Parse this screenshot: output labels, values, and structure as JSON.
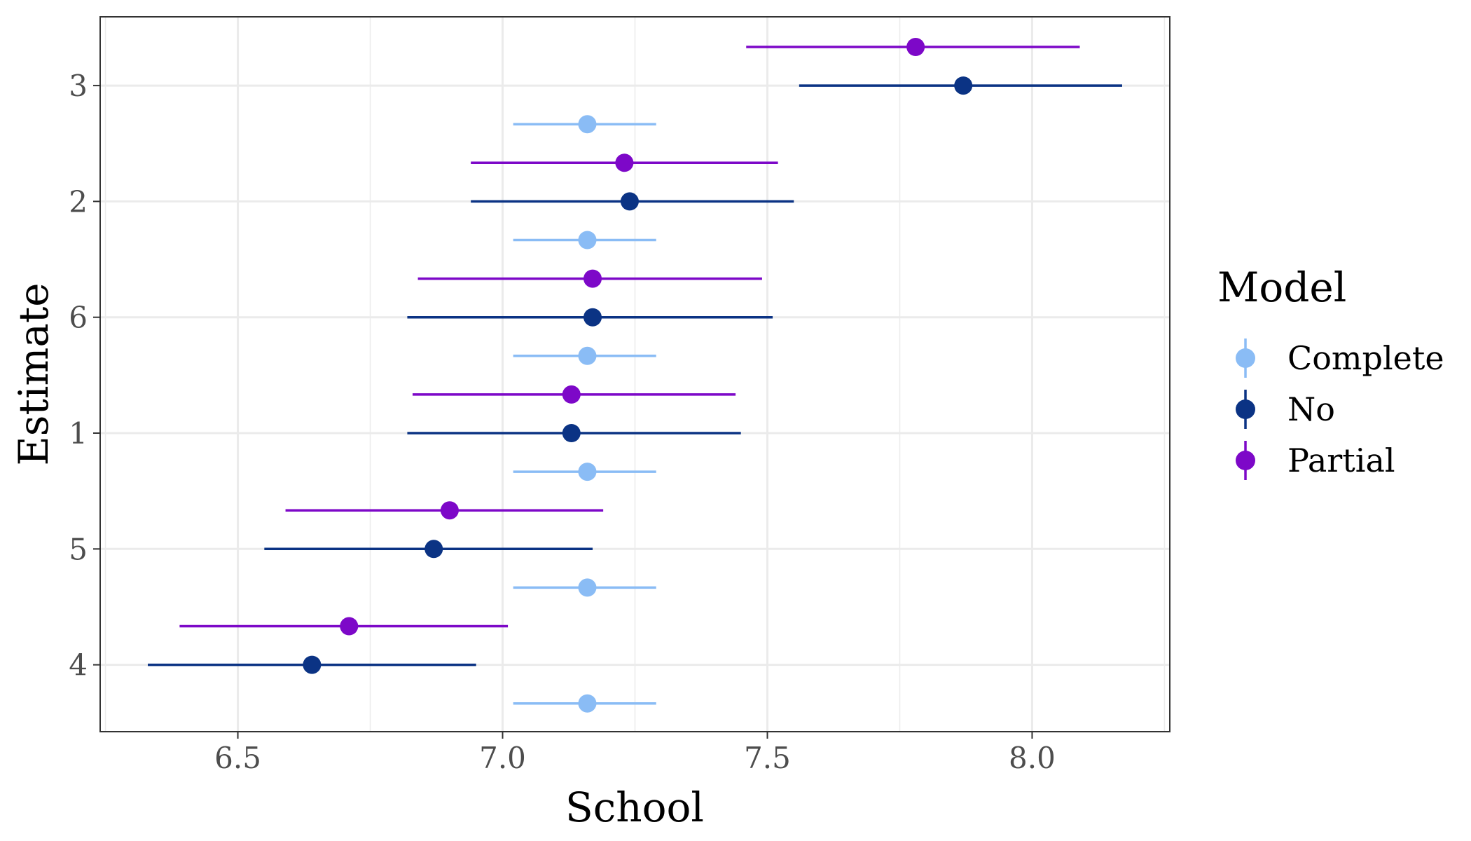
{
  "chart_data": {
    "type": "scatter",
    "subtype": "point-range",
    "xlabel": "School",
    "ylabel": "Estimate",
    "xlim": [
      6.24,
      8.26
    ],
    "xticks": [
      6.5,
      7.0,
      7.5,
      8.0
    ],
    "xtick_labels": [
      "6.5",
      "7.0",
      "7.5",
      "8.0"
    ],
    "categories": [
      "4",
      "5",
      "1",
      "6",
      "2",
      "3"
    ],
    "grid": true,
    "legend": {
      "title": "Model",
      "position": "right",
      "entries": [
        "Complete",
        "No",
        "Partial"
      ]
    },
    "series": [
      {
        "name": "Complete",
        "color": "#8ABCF5",
        "points": [
          {
            "category": "4",
            "estimate": 7.16,
            "lower": 7.02,
            "upper": 7.29
          },
          {
            "category": "5",
            "estimate": 7.16,
            "lower": 7.02,
            "upper": 7.29
          },
          {
            "category": "1",
            "estimate": 7.16,
            "lower": 7.02,
            "upper": 7.29
          },
          {
            "category": "6",
            "estimate": 7.16,
            "lower": 7.02,
            "upper": 7.29
          },
          {
            "category": "2",
            "estimate": 7.16,
            "lower": 7.02,
            "upper": 7.29
          },
          {
            "category": "3",
            "estimate": 7.16,
            "lower": 7.02,
            "upper": 7.29
          }
        ]
      },
      {
        "name": "No",
        "color": "#0B3384",
        "points": [
          {
            "category": "4",
            "estimate": 6.64,
            "lower": 6.33,
            "upper": 6.95
          },
          {
            "category": "5",
            "estimate": 6.87,
            "lower": 6.55,
            "upper": 7.17
          },
          {
            "category": "1",
            "estimate": 7.13,
            "lower": 6.82,
            "upper": 7.45
          },
          {
            "category": "6",
            "estimate": 7.17,
            "lower": 6.82,
            "upper": 7.51
          },
          {
            "category": "2",
            "estimate": 7.24,
            "lower": 6.94,
            "upper": 7.55
          },
          {
            "category": "3",
            "estimate": 7.87,
            "lower": 7.56,
            "upper": 8.17
          }
        ]
      },
      {
        "name": "Partial",
        "color": "#7D08C8",
        "points": [
          {
            "category": "4",
            "estimate": 6.71,
            "lower": 6.39,
            "upper": 7.01
          },
          {
            "category": "5",
            "estimate": 6.9,
            "lower": 6.59,
            "upper": 7.19
          },
          {
            "category": "1",
            "estimate": 7.13,
            "lower": 6.83,
            "upper": 7.44
          },
          {
            "category": "6",
            "estimate": 7.17,
            "lower": 6.84,
            "upper": 7.49
          },
          {
            "category": "2",
            "estimate": 7.23,
            "lower": 6.94,
            "upper": 7.52
          },
          {
            "category": "3",
            "estimate": 7.78,
            "lower": 7.46,
            "upper": 8.09
          }
        ]
      }
    ]
  }
}
